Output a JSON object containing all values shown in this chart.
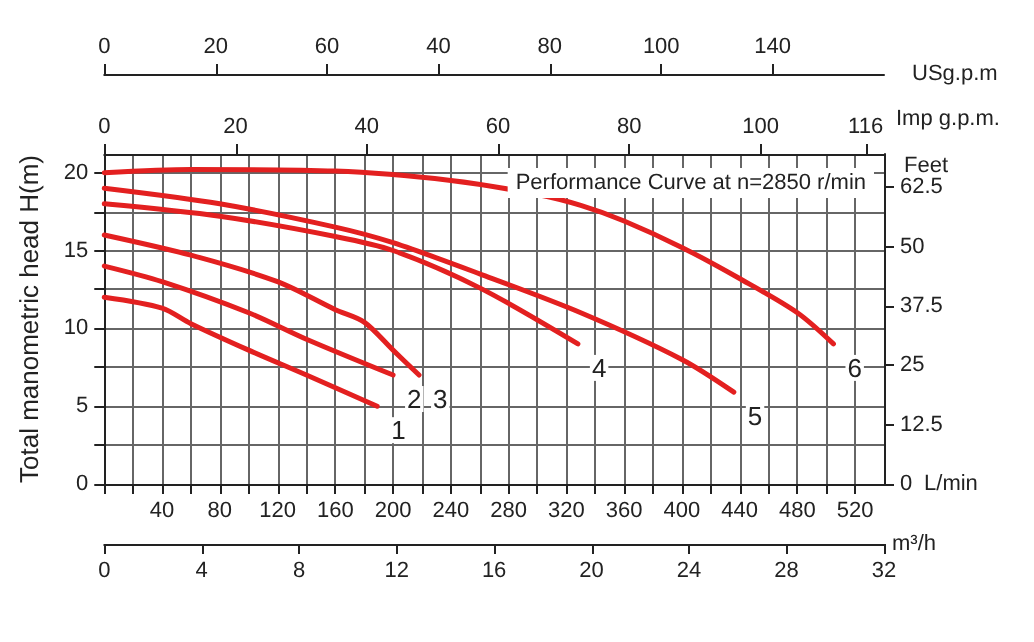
{
  "chart_data": {
    "type": "line",
    "annotations": [
      "Performance Curve at n=2850 r/min",
      "USg.p.m",
      "0",
      "20",
      "60",
      "40",
      "80",
      "100",
      "140",
      "m³/h",
      "0",
      "4",
      "8",
      "12",
      "16",
      "20",
      "24",
      "28",
      "32"
    ],
    "ylabel": "Total manometric head H(m)",
    "y2label": "Feet",
    "xlabel": "L/min",
    "x2label": "Imp g.p.m.",
    "xlim": [
      0,
      540
    ],
    "xticks": [
      {
        "value": 0,
        "label": null
      },
      {
        "value": 20,
        "label": null
      },
      40,
      {
        "value": 60,
        "label": null
      },
      80,
      {
        "value": 100,
        "label": null
      },
      120,
      {
        "value": 140,
        "label": null
      },
      160,
      {
        "value": 180,
        "label": null
      },
      200,
      {
        "value": 220,
        "label": null
      },
      240,
      {
        "value": 260,
        "label": null
      },
      280,
      {
        "value": 300,
        "label": null
      },
      320,
      {
        "value": 340,
        "label": null
      },
      360,
      {
        "value": 380,
        "label": null
      },
      400,
      {
        "value": 420,
        "label": null
      },
      440,
      {
        "value": 460,
        "label": null
      },
      480,
      {
        "value": 500,
        "label": null
      },
      520
    ],
    "x2lim": [
      0,
      118.8
    ],
    "x2ticks": [
      0,
      20,
      40,
      60,
      80,
      100,
      116
    ],
    "ylim": [
      0,
      21.2
    ],
    "yticks": [
      0,
      {
        "value": 2.5,
        "label": null
      },
      5,
      {
        "value": 7.5,
        "label": null
      },
      10,
      {
        "value": 12.5,
        "label": null
      },
      15,
      {
        "value": 17.5,
        "label": null
      },
      20
    ],
    "y2lim": [
      0,
      69.55
    ],
    "y2ticks": [
      0,
      12.5,
      25,
      37.5,
      50,
      62.5
    ],
    "grid": true,
    "legend": false,
    "marker": "none",
    "line_style": "solid",
    "series": [
      {
        "name": "1",
        "color": "#e32020",
        "x": [
          0,
          40,
          60,
          100,
          140,
          189
        ],
        "values": [
          12,
          11.3,
          10.3,
          8.6,
          7,
          5
        ]
      },
      {
        "name": "2",
        "color": "#e32020",
        "x": [
          0,
          40,
          100,
          140,
          200
        ],
        "values": [
          14,
          13,
          11,
          9.3,
          7
        ]
      },
      {
        "name": "3",
        "color": "#e32020",
        "x": [
          0,
          60,
          120,
          160,
          180,
          200,
          218
        ],
        "values": [
          16,
          14.7,
          13,
          11.2,
          10.4,
          8.6,
          7
        ]
      },
      {
        "name": "4",
        "color": "#e32020",
        "x": [
          0,
          80,
          160,
          200,
          260,
          328
        ],
        "values": [
          18,
          17.2,
          15.9,
          15,
          12.6,
          9
        ]
      },
      {
        "name": "5",
        "color": "#e32020",
        "x": [
          0,
          80,
          160,
          200,
          260,
          330,
          400,
          436
        ],
        "values": [
          19,
          18,
          16.5,
          15.5,
          13.5,
          11,
          8,
          5.9
        ]
      },
      {
        "name": "6",
        "color": "#e32020",
        "x": [
          0,
          60,
          160,
          240,
          300,
          330,
          360,
          400,
          440,
          480,
          505
        ],
        "values": [
          20,
          20.2,
          20.1,
          19.5,
          18.6,
          17.9,
          16.9,
          15.2,
          13.2,
          11,
          9
        ]
      }
    ]
  }
}
